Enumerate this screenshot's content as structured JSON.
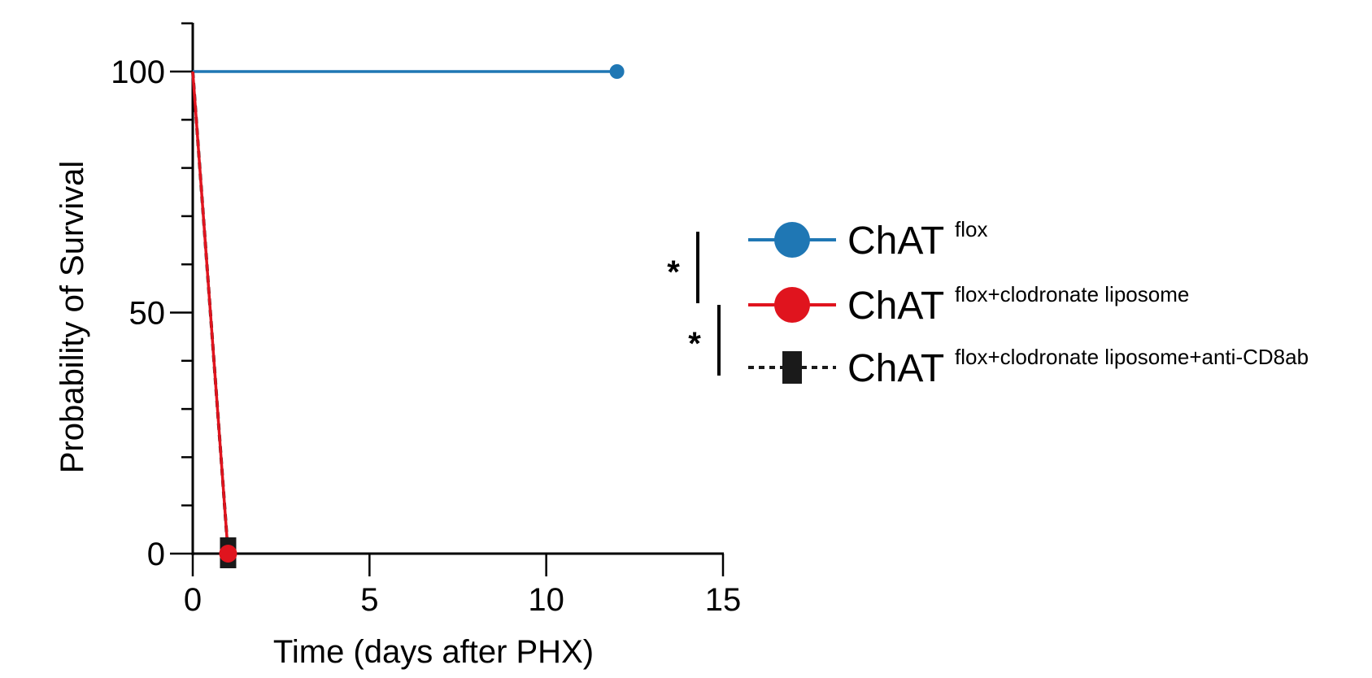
{
  "chart_data": {
    "type": "line",
    "subtype": "kaplan-meier survival",
    "xlabel": "Time (days after PHX)",
    "ylabel": "Probability of Survival",
    "xlim": [
      0,
      15
    ],
    "ylim": [
      0,
      100
    ],
    "xticks": [
      0,
      5,
      10,
      15
    ],
    "yticks": [
      0,
      50,
      100
    ],
    "grid": false,
    "legend_position": "right",
    "series": [
      {
        "name_main": "ChAT",
        "name_sup": "flox",
        "color": "#1f77b4",
        "line_style": "solid",
        "marker": "circle",
        "points": [
          {
            "x": 0,
            "y": 100
          },
          {
            "x": 12,
            "y": 100
          }
        ],
        "end_marker": {
          "x": 12,
          "y": 100
        }
      },
      {
        "name_main": "ChAT",
        "name_sup": "flox+clodronate liposome",
        "color": "#e0141e",
        "line_style": "solid",
        "marker": "circle",
        "points": [
          {
            "x": 0,
            "y": 100
          },
          {
            "x": 1,
            "y": 0
          }
        ],
        "end_marker": {
          "x": 1,
          "y": 0
        }
      },
      {
        "name_main": "ChAT",
        "name_sup": "flox+clodronate liposome+anti-CD8ab",
        "color": "#1a1a1a",
        "line_style": "dashed",
        "marker": "square",
        "points": [
          {
            "x": 0,
            "y": 100
          },
          {
            "x": 1,
            "y": 0
          }
        ],
        "end_marker": {
          "x": 1,
          "y": 0
        }
      }
    ],
    "significance": [
      {
        "between": [
          0,
          1
        ],
        "label": "*"
      },
      {
        "between": [
          1,
          2
        ],
        "label": "*"
      }
    ]
  }
}
